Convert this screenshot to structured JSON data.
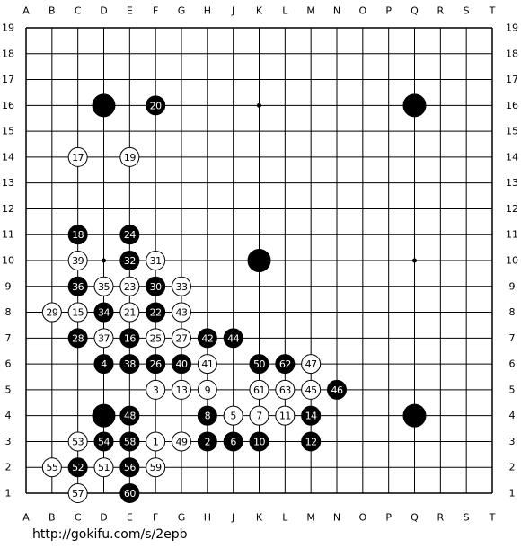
{
  "board": {
    "columns": [
      "A",
      "B",
      "C",
      "D",
      "E",
      "F",
      "G",
      "H",
      "J",
      "K",
      "L",
      "M",
      "N",
      "O",
      "P",
      "Q",
      "R",
      "S",
      "T"
    ],
    "rows": [
      "19",
      "18",
      "17",
      "16",
      "15",
      "14",
      "13",
      "12",
      "11",
      "10",
      "9",
      "8",
      "7",
      "6",
      "5",
      "4",
      "3",
      "2",
      "1"
    ],
    "stones": [
      {
        "color": "black",
        "point": "D16"
      },
      {
        "color": "black",
        "point": "Q16"
      },
      {
        "color": "black",
        "point": "K10"
      },
      {
        "color": "black",
        "point": "D4"
      },
      {
        "color": "black",
        "point": "Q4"
      },
      {
        "color": "black",
        "point": "F16",
        "label": "20"
      },
      {
        "color": "black",
        "point": "C11",
        "label": "18"
      },
      {
        "color": "black",
        "point": "E11",
        "label": "24"
      },
      {
        "color": "black",
        "point": "E10",
        "label": "32"
      },
      {
        "color": "black",
        "point": "C9",
        "label": "36"
      },
      {
        "color": "black",
        "point": "F9",
        "label": "30"
      },
      {
        "color": "black",
        "point": "D8",
        "label": "34"
      },
      {
        "color": "black",
        "point": "F8",
        "label": "22"
      },
      {
        "color": "black",
        "point": "C7",
        "label": "28"
      },
      {
        "color": "black",
        "point": "E7",
        "label": "16"
      },
      {
        "color": "black",
        "point": "H7",
        "label": "42"
      },
      {
        "color": "black",
        "point": "J7",
        "label": "44"
      },
      {
        "color": "black",
        "point": "D6",
        "label": "4"
      },
      {
        "color": "black",
        "point": "E6",
        "label": "38"
      },
      {
        "color": "black",
        "point": "F6",
        "label": "26"
      },
      {
        "color": "black",
        "point": "G6",
        "label": "40"
      },
      {
        "color": "black",
        "point": "K6",
        "label": "50"
      },
      {
        "color": "black",
        "point": "L6",
        "label": "62"
      },
      {
        "color": "black",
        "point": "N5",
        "label": "46"
      },
      {
        "color": "black",
        "point": "E4",
        "label": "48"
      },
      {
        "color": "black",
        "point": "H4",
        "label": "8"
      },
      {
        "color": "black",
        "point": "M4",
        "label": "14"
      },
      {
        "color": "black",
        "point": "D3",
        "label": "54"
      },
      {
        "color": "black",
        "point": "E3",
        "label": "58"
      },
      {
        "color": "black",
        "point": "H3",
        "label": "2"
      },
      {
        "color": "black",
        "point": "J3",
        "label": "6"
      },
      {
        "color": "black",
        "point": "K3",
        "label": "10"
      },
      {
        "color": "black",
        "point": "M3",
        "label": "12"
      },
      {
        "color": "black",
        "point": "C2",
        "label": "52"
      },
      {
        "color": "black",
        "point": "E2",
        "label": "56"
      },
      {
        "color": "black",
        "point": "E1",
        "label": "60"
      },
      {
        "color": "white",
        "point": "C14",
        "label": "17"
      },
      {
        "color": "white",
        "point": "E14",
        "label": "19"
      },
      {
        "color": "white",
        "point": "C10",
        "label": "39"
      },
      {
        "color": "white",
        "point": "F10",
        "label": "31"
      },
      {
        "color": "white",
        "point": "D9",
        "label": "35"
      },
      {
        "color": "white",
        "point": "E9",
        "label": "23"
      },
      {
        "color": "white",
        "point": "G9",
        "label": "33"
      },
      {
        "color": "white",
        "point": "B8",
        "label": "29"
      },
      {
        "color": "white",
        "point": "C8",
        "label": "15"
      },
      {
        "color": "white",
        "point": "E8",
        "label": "21"
      },
      {
        "color": "white",
        "point": "G8",
        "label": "43"
      },
      {
        "color": "white",
        "point": "D7",
        "label": "37"
      },
      {
        "color": "white",
        "point": "F7",
        "label": "25"
      },
      {
        "color": "white",
        "point": "G7",
        "label": "27"
      },
      {
        "color": "white",
        "point": "H6",
        "label": "41"
      },
      {
        "color": "white",
        "point": "M6",
        "label": "47"
      },
      {
        "color": "white",
        "point": "F5",
        "label": "3"
      },
      {
        "color": "white",
        "point": "G5",
        "label": "13"
      },
      {
        "color": "white",
        "point": "H5",
        "label": "9"
      },
      {
        "color": "white",
        "point": "K5",
        "label": "61"
      },
      {
        "color": "white",
        "point": "L5",
        "label": "63"
      },
      {
        "color": "white",
        "point": "M5",
        "label": "45"
      },
      {
        "color": "white",
        "point": "J4",
        "label": "5"
      },
      {
        "color": "white",
        "point": "K4",
        "label": "7"
      },
      {
        "color": "white",
        "point": "L4",
        "label": "11"
      },
      {
        "color": "white",
        "point": "C3",
        "label": "53"
      },
      {
        "color": "white",
        "point": "F3",
        "label": "1"
      },
      {
        "color": "white",
        "point": "G3",
        "label": "49"
      },
      {
        "color": "white",
        "point": "B2",
        "label": "55"
      },
      {
        "color": "white",
        "point": "D2",
        "label": "51"
      },
      {
        "color": "white",
        "point": "F2",
        "label": "59"
      },
      {
        "color": "white",
        "point": "C1",
        "label": "57"
      }
    ]
  },
  "footer": {
    "url": "http://gokifu.com/s/2epb"
  }
}
